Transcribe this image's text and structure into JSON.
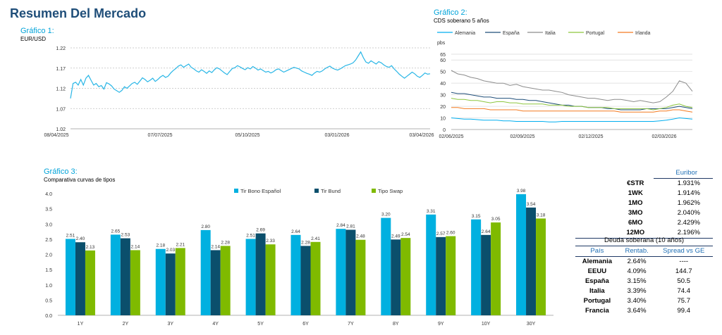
{
  "page_title": "Resumen Del Mercado",
  "colors": {
    "title": "#1f4e79",
    "chart_title": "#00a3d9",
    "line1": "#29b6e6",
    "grid": "#bfbfbf",
    "bar_es": "#00b0e0",
    "bar_bund": "#0b4f6c",
    "bar_swap": "#7fba00"
  },
  "chart_data": [
    {
      "id": "g1",
      "type": "line",
      "title": "Gráfico 1:",
      "subtitle": "EUR/USD",
      "y_ticks": [
        "1.22",
        "1.17",
        "1.12",
        "1.07",
        "1.02"
      ],
      "ylim": [
        1.02,
        1.22
      ],
      "x_ticks": [
        "08/04/2025",
        "07/07/2025",
        "05/10/2025",
        "03/01/2026",
        "03/04/2026"
      ],
      "grid": true,
      "series": [
        {
          "values": [
            1.095,
            1.132,
            1.135,
            1.128,
            1.142,
            1.128,
            1.145,
            1.152,
            1.14,
            1.128,
            1.132,
            1.124,
            1.127,
            1.118,
            1.134,
            1.131,
            1.126,
            1.118,
            1.114,
            1.11,
            1.115,
            1.124,
            1.12,
            1.126,
            1.132,
            1.135,
            1.13,
            1.138,
            1.146,
            1.142,
            1.136,
            1.14,
            1.145,
            1.137,
            1.142,
            1.148,
            1.152,
            1.147,
            1.15,
            1.158,
            1.164,
            1.169,
            1.175,
            1.178,
            1.172,
            1.176,
            1.18,
            1.172,
            1.168,
            1.163,
            1.16,
            1.166,
            1.162,
            1.157,
            1.163,
            1.159,
            1.166,
            1.171,
            1.168,
            1.163,
            1.158,
            1.154,
            1.162,
            1.169,
            1.171,
            1.176,
            1.173,
            1.169,
            1.166,
            1.171,
            1.168,
            1.174,
            1.17,
            1.165,
            1.168,
            1.164,
            1.16,
            1.162,
            1.158,
            1.161,
            1.166,
            1.168,
            1.164,
            1.16,
            1.163,
            1.166,
            1.169,
            1.172,
            1.17,
            1.168,
            1.163,
            1.16,
            1.157,
            1.155,
            1.152,
            1.158,
            1.162,
            1.16,
            1.163,
            1.168,
            1.172,
            1.175,
            1.17,
            1.167,
            1.165,
            1.168,
            1.172,
            1.176,
            1.178,
            1.18,
            1.183,
            1.19,
            1.2,
            1.21,
            1.196,
            1.185,
            1.182,
            1.188,
            1.184,
            1.18,
            1.186,
            1.183,
            1.178,
            1.174,
            1.172,
            1.176,
            1.168,
            1.162,
            1.155,
            1.15,
            1.145,
            1.15,
            1.155,
            1.16,
            1.156,
            1.15,
            1.147,
            1.152,
            1.158,
            1.155,
            1.156
          ]
        }
      ]
    },
    {
      "id": "g2",
      "type": "line",
      "title": "Gráfico 2:",
      "subtitle": "CDS soberano 5 años",
      "unit": "pbs",
      "y_ticks": [
        "65",
        "60",
        "50",
        "40",
        "30",
        "20",
        "10",
        "0"
      ],
      "ylim": [
        0,
        65
      ],
      "x_ticks": [
        "02/06/2025",
        "02/09/2025",
        "02/12/2025",
        "02/03/2026"
      ],
      "grid": true,
      "series": [
        {
          "name": "Alemania",
          "color": "#00aeef",
          "values": [
            10,
            9.5,
            9,
            9,
            8.5,
            8,
            8,
            8,
            7.5,
            7.5,
            7,
            7,
            7,
            7,
            7,
            6.5,
            6.5,
            7,
            7,
            7,
            7,
            7,
            7,
            7,
            7,
            7,
            7,
            7,
            7,
            7,
            7,
            7,
            7.5,
            8,
            9,
            10,
            9.5,
            9
          ]
        },
        {
          "name": "España",
          "color": "#1f4e79",
          "values": [
            32,
            31,
            31,
            30,
            29,
            28,
            28,
            27,
            27,
            27,
            26,
            26,
            25,
            25,
            24,
            23,
            22,
            21,
            21,
            20,
            20,
            19,
            19,
            19,
            18,
            18,
            17,
            17,
            17,
            17,
            18,
            18,
            18,
            18,
            19,
            20,
            19,
            18
          ]
        },
        {
          "name": "Italia",
          "color": "#8c8c8c",
          "values": [
            51,
            48,
            47,
            45,
            44,
            42,
            41,
            40,
            40,
            38,
            39,
            37,
            36,
            35,
            34,
            34,
            33,
            32,
            30,
            29,
            28,
            27,
            27,
            26,
            25,
            26,
            26,
            25,
            24,
            25,
            24,
            23,
            24,
            28,
            33,
            42,
            40,
            33
          ]
        },
        {
          "name": "Portugal",
          "color": "#8dc63f",
          "values": [
            27,
            26,
            26,
            25,
            25,
            24,
            23,
            24,
            24,
            23,
            23,
            22,
            22,
            22,
            22,
            21,
            21,
            21,
            20,
            20,
            20,
            19,
            19,
            19,
            19,
            18,
            18,
            18,
            18,
            18,
            18,
            17,
            18,
            19,
            21,
            22,
            20,
            19
          ]
        },
        {
          "name": "Irlanda",
          "color": "#f47a20",
          "values": [
            19,
            19,
            18,
            18,
            18,
            18,
            17,
            17,
            17,
            17,
            17,
            16,
            16,
            16,
            16,
            16,
            16,
            16,
            16,
            16,
            16,
            16,
            16,
            16,
            16,
            16,
            15,
            15,
            15,
            15,
            15,
            15,
            16,
            16,
            17,
            17,
            16,
            15
          ]
        }
      ]
    },
    {
      "id": "g3",
      "type": "bar",
      "title": "Gráfico 3:",
      "subtitle": "Comparativa curvas de tipos",
      "y_ticks": [
        "4.0",
        "3.5",
        "3.0",
        "2.5",
        "2.0",
        "1.5",
        "1.0",
        "0.5",
        "0.0"
      ],
      "ylim": [
        0,
        4.2
      ],
      "categories": [
        "1Y",
        "2Y",
        "3Y",
        "4Y",
        "5Y",
        "6Y",
        "7Y",
        "8Y",
        "9Y",
        "10Y",
        "30Y"
      ],
      "series": [
        {
          "name": "Tir Bono Español",
          "color": "#00b0e0",
          "values": [
            2.51,
            2.65,
            2.18,
            2.8,
            2.51,
            2.64,
            2.84,
            3.2,
            3.31,
            3.15,
            3.98
          ],
          "labels": [
            "2.51",
            "2.65",
            "2.18",
            "2.80",
            "2.51",
            "2.64",
            "2.84",
            "3.20",
            "3.31",
            "3.15",
            "3.98"
          ]
        },
        {
          "name": "Tir Bund",
          "color": "#0b4f6c",
          "values": [
            2.4,
            2.53,
            2.03,
            2.14,
            2.69,
            2.28,
            2.81,
            2.49,
            2.57,
            2.64,
            3.54
          ],
          "labels": [
            "2.40",
            "2.53",
            "2.03",
            "2.14",
            "2.69",
            "2.28",
            "2.81",
            "2.49",
            "2.57",
            "2.64",
            "3.54"
          ]
        },
        {
          "name": "Tipo Swap",
          "color": "#7fba00",
          "values": [
            2.13,
            2.14,
            2.21,
            2.28,
            2.33,
            2.41,
            2.48,
            2.54,
            2.6,
            3.05,
            3.18
          ],
          "labels": [
            "2.13",
            "2.14",
            "2.21",
            "2.28",
            "2.33",
            "2.41",
            "2.48",
            "2.54",
            "2.60",
            "3.05",
            "3.18"
          ]
        }
      ]
    }
  ],
  "euribor": {
    "header": "Euribor",
    "rows": [
      {
        "label": "€STR",
        "value": "1.931%"
      },
      {
        "label": "1WK",
        "value": "1.914%"
      },
      {
        "label": "1MO",
        "value": "1.962%"
      },
      {
        "label": "3MO",
        "value": "2.040%"
      },
      {
        "label": "6MO",
        "value": "2.429%"
      },
      {
        "label": "12MO",
        "value": "2.196%"
      }
    ]
  },
  "deuda": {
    "header": "Deuda soberana (10 años)",
    "col_pais": "País",
    "col_rent": "Rentab.",
    "col_spread": "Spread vs GE",
    "rows": [
      {
        "pais": "Alemania",
        "rent": "2.64%",
        "spread": "----"
      },
      {
        "pais": "EEUU",
        "rent": "4.09%",
        "spread": "144.7"
      },
      {
        "pais": "España",
        "rent": "3.15%",
        "spread": "50.5"
      },
      {
        "pais": "Italia",
        "rent": "3.39%",
        "spread": "74.4"
      },
      {
        "pais": "Portugal",
        "rent": "3.40%",
        "spread": "75.7"
      },
      {
        "pais": "Francia",
        "rent": "3.64%",
        "spread": "99.4"
      }
    ]
  }
}
